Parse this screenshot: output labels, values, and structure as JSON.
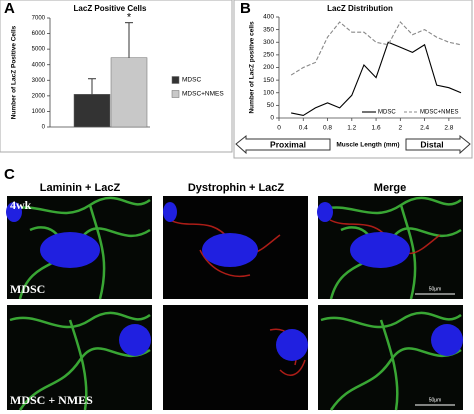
{
  "panel_labels": [
    "A",
    "B",
    "C"
  ],
  "chart_data": [
    {
      "type": "bar",
      "title": "LacZ Positive Cells",
      "y_label": "Number of LacZ Positive Cells",
      "categories": [
        null
      ],
      "series": [
        {
          "name": "MDSC",
          "color": "#333333",
          "values": [
            2100
          ],
          "errors": [
            1000
          ]
        },
        {
          "name": "MDSC+NMES",
          "color": "#c8c8c8",
          "values": [
            4450
          ],
          "errors": [
            2250
          ]
        }
      ],
      "annotation": "*",
      "ylim": [
        0,
        7000
      ],
      "yticks": [
        0,
        1000,
        2000,
        3000,
        4000,
        5000,
        6000,
        7000
      ]
    },
    {
      "type": "line",
      "title": "LacZ Distribution",
      "y_label": "Number of LacZ positive cells",
      "x_label": "Muscle Length (mm)",
      "annotations": [
        "Proximal",
        "Distal"
      ],
      "x": [
        0.2,
        0.4,
        0.6,
        0.8,
        1.0,
        1.2,
        1.4,
        1.6,
        1.8,
        2.0,
        2.2,
        2.4,
        2.6,
        2.8,
        3.0
      ],
      "series": [
        {
          "name": "MDSC",
          "color": "#000000",
          "dash": false,
          "values": [
            20,
            10,
            40,
            60,
            40,
            90,
            210,
            160,
            300,
            280,
            260,
            290,
            130,
            120,
            100
          ]
        },
        {
          "name": "MDSC+NMES",
          "color": "#888888",
          "dash": true,
          "values": [
            170,
            200,
            220,
            320,
            380,
            340,
            340,
            300,
            290,
            380,
            330,
            350,
            320,
            300,
            290
          ]
        }
      ],
      "xlim": [
        0,
        3
      ],
      "xticks": [
        0,
        0.4,
        0.8,
        1.2,
        1.6,
        2,
        2.4,
        2.8
      ],
      "ylim": [
        0,
        400
      ],
      "yticks": [
        0,
        50,
        100,
        150,
        200,
        250,
        300,
        350,
        400
      ]
    }
  ],
  "panel_c": {
    "columns": [
      "Laminin + LacZ",
      "Dystrophin + LacZ",
      "Merge"
    ],
    "time_label": "4wk",
    "row_labels": [
      "MDSC",
      "MDSC + NMES"
    ],
    "scale_bars": [
      "50μm",
      "50μm"
    ]
  }
}
